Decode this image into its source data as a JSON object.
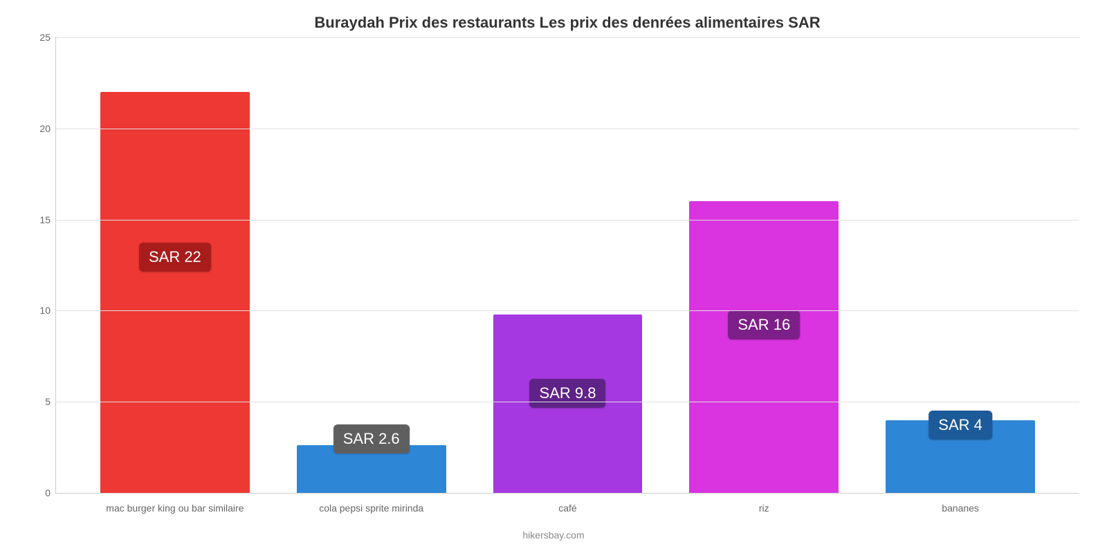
{
  "chart": {
    "type": "bar",
    "title": "Buraydah Prix des restaurants Les prix des denrées alimentaires SAR",
    "title_fontsize": 22,
    "title_weight": "bold",
    "title_color": "#333333",
    "source": "hikersbay.com",
    "source_color": "#888888",
    "source_fontsize": 14,
    "background_color": "#ffffff",
    "plot_border_color": "#cccccc",
    "grid_color": "#e0e0e0",
    "ylim": [
      0,
      25
    ],
    "yticks": [
      0,
      5,
      10,
      15,
      20,
      25
    ],
    "ytick_fontsize": 14,
    "ytick_color": "#666666",
    "xlabel_fontsize": 14,
    "xlabel_color": "#666666",
    "bar_width_pct": 76,
    "value_label_fontsize": 22,
    "value_label_text_color": "#ffffff",
    "categories": [
      "mac burger king ou bar similaire",
      "cola pepsi sprite mirinda",
      "café",
      "riz",
      "bananes"
    ],
    "values": [
      22,
      2.6,
      9.8,
      16,
      4
    ],
    "value_labels": [
      "SAR 22",
      "SAR 2.6",
      "SAR 9.8",
      "SAR 16",
      "SAR 4"
    ],
    "bar_colors": [
      "#ed3833",
      "#2d86d6",
      "#a538e0",
      "#d934e0",
      "#2d86d6"
    ],
    "label_badge_colors": [
      "#a81c1c",
      "#5f5f5f",
      "#5f2288",
      "#7d1f88",
      "#1c5a99"
    ],
    "label_vertical_position_pct": [
      45,
      85,
      75,
      60,
      82
    ]
  }
}
